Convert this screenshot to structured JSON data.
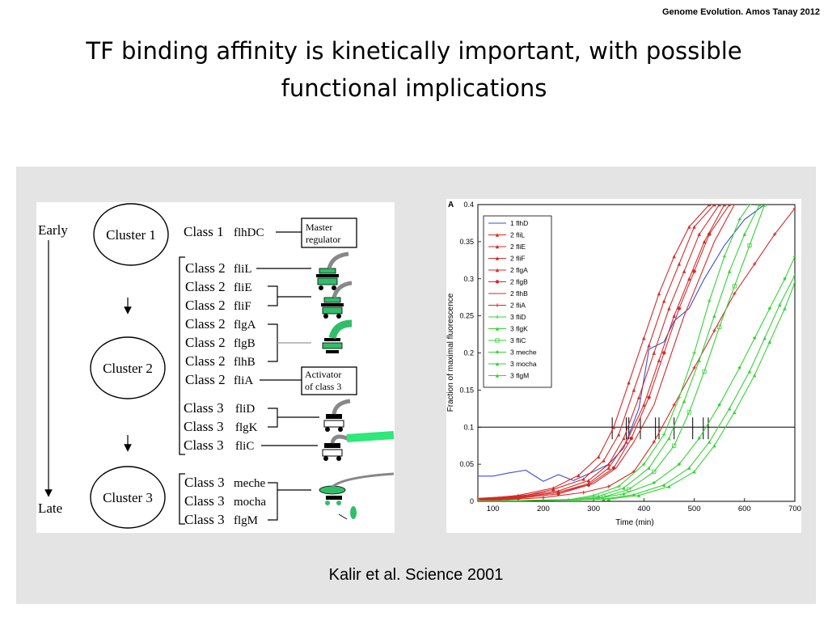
{
  "header": {
    "credit": "Genome Evolution. Amos Tanay 2012",
    "title_line1": "TF binding affinity is kinetically important, with possible",
    "title_line2": "functional implications"
  },
  "left_figure": {
    "early": "Early",
    "late": "Late",
    "clusters": [
      "Cluster 1",
      "Cluster 2",
      "Cluster 3"
    ],
    "genes": [
      {
        "cls": "Class 1",
        "gene": "flhDC"
      },
      {
        "cls": "Class 2",
        "gene": "fliL"
      },
      {
        "cls": "Class 2",
        "gene": "fliE"
      },
      {
        "cls": "Class 2",
        "gene": "fliF"
      },
      {
        "cls": "Class 2",
        "gene": "flgA"
      },
      {
        "cls": "Class 2",
        "gene": "flgB"
      },
      {
        "cls": "Class 2",
        "gene": "flhB"
      },
      {
        "cls": "Class 2",
        "gene": "fliA"
      },
      {
        "cls": "Class 3",
        "gene": "fliD"
      },
      {
        "cls": "Class 3",
        "gene": "flgK"
      },
      {
        "cls": "Class 3",
        "gene": "fliC"
      },
      {
        "cls": "Class 3",
        "gene": "meche"
      },
      {
        "cls": "Class 3",
        "gene": "mocha"
      },
      {
        "cls": "Class 3",
        "gene": "flgM"
      }
    ],
    "master_regulator": [
      "Master",
      "regulator"
    ],
    "activator": [
      "Activator",
      "of class 3"
    ],
    "colors": {
      "motor": "#2fbf6a"
    }
  },
  "chart_data": {
    "type": "line",
    "panel_label": "A",
    "xlabel": "Time (min)",
    "ylabel": "Fraction of maximal fluorescence",
    "xlim": [
      70,
      700
    ],
    "ylim": [
      0,
      0.4
    ],
    "xticks": [
      100,
      200,
      300,
      400,
      500,
      600,
      700
    ],
    "yticks": [
      0,
      0.05,
      0.1,
      0.15,
      0.2,
      0.25,
      0.3,
      0.35,
      0.4
    ],
    "tick_labels_x": [
      "100",
      "200",
      "300",
      "400",
      "500",
      "600",
      "700"
    ],
    "tick_labels_y": [
      "0",
      "0.05",
      "0.1",
      "0.15",
      "0.2",
      "0.25",
      "0.3",
      "0.35",
      "0.4"
    ],
    "threshold": 0.1,
    "crossing_times": [
      337,
      365,
      370,
      393,
      423,
      430,
      460,
      497,
      518,
      528
    ],
    "legend_position": "top-left",
    "series": [
      {
        "name": "1 flhD",
        "color": "#3a4fd0",
        "marker": "none",
        "x": [
          70,
          100,
          130,
          165,
          200,
          230,
          260,
          300,
          330,
          360,
          390,
          410,
          440,
          460,
          490,
          520,
          560,
          600,
          640
        ],
        "y": [
          0.034,
          0.034,
          0.038,
          0.042,
          0.027,
          0.036,
          0.028,
          0.04,
          0.05,
          0.072,
          0.125,
          0.205,
          0.215,
          0.243,
          0.26,
          0.3,
          0.345,
          0.38,
          0.4
        ]
      },
      {
        "name": "2 fliL",
        "color": "#d42a2a",
        "marker": "triangle",
        "x": [
          70,
          150,
          220,
          270,
          310,
          340,
          370,
          400,
          430,
          460,
          490,
          530
        ],
        "y": [
          0.003,
          0.008,
          0.018,
          0.035,
          0.06,
          0.1,
          0.16,
          0.22,
          0.28,
          0.33,
          0.37,
          0.4
        ]
      },
      {
        "name": "2 fliE",
        "color": "#d42a2a",
        "marker": "triangle",
        "x": [
          70,
          150,
          220,
          280,
          320,
          350,
          380,
          410,
          440,
          470,
          500,
          540
        ],
        "y": [
          0.002,
          0.006,
          0.016,
          0.03,
          0.055,
          0.09,
          0.15,
          0.21,
          0.27,
          0.32,
          0.37,
          0.4
        ]
      },
      {
        "name": "2 fliF",
        "color": "#d42a2a",
        "marker": "triangle",
        "x": [
          70,
          150,
          230,
          290,
          330,
          360,
          390,
          420,
          450,
          480,
          510,
          550
        ],
        "y": [
          0.004,
          0.007,
          0.014,
          0.028,
          0.05,
          0.085,
          0.14,
          0.2,
          0.26,
          0.31,
          0.36,
          0.4
        ]
      },
      {
        "name": "2 flgA",
        "color": "#d42a2a",
        "marker": "triangle",
        "x": [
          70,
          150,
          230,
          290,
          330,
          365,
          400,
          430,
          460,
          490,
          520,
          560
        ],
        "y": [
          0.002,
          0.005,
          0.012,
          0.024,
          0.045,
          0.08,
          0.13,
          0.19,
          0.25,
          0.3,
          0.35,
          0.4
        ]
      },
      {
        "name": "2 flgB",
        "color": "#d42a2a",
        "marker": "circle",
        "x": [
          70,
          150,
          230,
          290,
          340,
          375,
          410,
          440,
          470,
          500,
          530,
          570
        ],
        "y": [
          0.001,
          0.004,
          0.01,
          0.022,
          0.045,
          0.085,
          0.14,
          0.2,
          0.26,
          0.31,
          0.36,
          0.4
        ]
      },
      {
        "name": "2 flhB",
        "color": "#d42a2a",
        "marker": "none",
        "x": [
          70,
          150,
          230,
          300,
          345,
          380,
          420,
          450,
          480,
          510,
          540,
          580
        ],
        "y": [
          0.003,
          0.006,
          0.012,
          0.024,
          0.045,
          0.08,
          0.13,
          0.19,
          0.25,
          0.3,
          0.35,
          0.4
        ]
      },
      {
        "name": "2 fliA",
        "color": "#d42a2a",
        "marker": "plus",
        "x": [
          70,
          200,
          280,
          330,
          380,
          420,
          460,
          500,
          540,
          580,
          620,
          660,
          700
        ],
        "y": [
          0.0,
          0.005,
          0.012,
          0.02,
          0.04,
          0.08,
          0.13,
          0.18,
          0.23,
          0.28,
          0.32,
          0.36,
          0.395
        ]
      },
      {
        "name": "3 fliD",
        "color": "#35d235",
        "marker": "plus",
        "x": [
          70,
          250,
          300,
          350,
          400,
          440,
          470,
          500,
          530,
          560,
          590,
          610
        ],
        "y": [
          0.0,
          0.002,
          0.008,
          0.02,
          0.05,
          0.09,
          0.14,
          0.2,
          0.27,
          0.33,
          0.38,
          0.4
        ]
      },
      {
        "name": "3 flgK",
        "color": "#35d235",
        "marker": "triangle",
        "x": [
          70,
          260,
          310,
          360,
          410,
          450,
          480,
          510,
          540,
          570,
          600,
          630
        ],
        "y": [
          0.0,
          0.002,
          0.007,
          0.018,
          0.045,
          0.085,
          0.135,
          0.19,
          0.25,
          0.31,
          0.36,
          0.4
        ]
      },
      {
        "name": "3 fliC",
        "color": "#35d235",
        "marker": "square",
        "x": [
          70,
          270,
          320,
          370,
          420,
          460,
          490,
          520,
          550,
          580,
          610,
          640
        ],
        "y": [
          0.0,
          0.002,
          0.006,
          0.016,
          0.04,
          0.075,
          0.12,
          0.175,
          0.235,
          0.29,
          0.345,
          0.4
        ]
      },
      {
        "name": "3 meche",
        "color": "#35d235",
        "marker": "diamond",
        "x": [
          70,
          300,
          360,
          420,
          470,
          510,
          550,
          590,
          620,
          650,
          680,
          700
        ],
        "y": [
          0.0,
          0.003,
          0.01,
          0.025,
          0.05,
          0.085,
          0.13,
          0.18,
          0.22,
          0.26,
          0.3,
          0.33
        ]
      },
      {
        "name": "3 mocha",
        "color": "#35d235",
        "marker": "triangle",
        "x": [
          70,
          320,
          380,
          440,
          490,
          530,
          570,
          610,
          640,
          670,
          700
        ],
        "y": [
          0.0,
          0.003,
          0.009,
          0.022,
          0.045,
          0.08,
          0.125,
          0.175,
          0.22,
          0.265,
          0.305
        ]
      },
      {
        "name": "3 flgM",
        "color": "#35d235",
        "marker": "triangle",
        "x": [
          70,
          330,
          390,
          450,
          500,
          540,
          580,
          620,
          650,
          680,
          700
        ],
        "y": [
          0.0,
          0.003,
          0.008,
          0.02,
          0.04,
          0.075,
          0.12,
          0.17,
          0.215,
          0.26,
          0.295
        ]
      }
    ]
  },
  "citation": "Kalir et al. Science 2001"
}
